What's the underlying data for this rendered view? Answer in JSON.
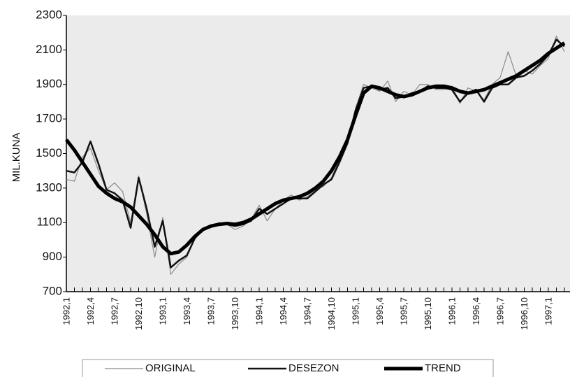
{
  "chart_data": {
    "type": "line",
    "y_label": "MIL.KUNA",
    "categories": [
      "1992,1",
      null,
      null,
      "1992,4",
      null,
      null,
      "1992,7",
      null,
      null,
      "1992,10",
      null,
      null,
      "1993,1",
      null,
      null,
      "1993,4",
      null,
      null,
      "1993,7",
      null,
      null,
      "1993,10",
      null,
      null,
      "1994,1",
      null,
      null,
      "1994,4",
      null,
      null,
      "1994,7",
      null,
      null,
      "1994,10",
      null,
      null,
      "1995,1",
      null,
      null,
      "1995,4",
      null,
      null,
      "1995,7",
      null,
      null,
      "1995,10",
      null,
      null,
      "1996,1",
      null,
      null,
      "1996,4",
      null,
      null,
      "1996,7",
      null,
      null,
      "1996,10",
      null,
      null,
      "1997,1",
      null,
      null
    ],
    "series": [
      {
        "name": "ORIGINAL",
        "color": "#8a8a8a",
        "width": 1.2,
        "values": [
          1350,
          1340,
          1480,
          1530,
          1400,
          1290,
          1330,
          1280,
          1100,
          1370,
          1150,
          900,
          1130,
          800,
          860,
          900,
          1010,
          1070,
          1070,
          1100,
          1090,
          1060,
          1080,
          1120,
          1200,
          1110,
          1180,
          1230,
          1260,
          1230,
          1250,
          1290,
          1310,
          1360,
          1470,
          1580,
          1760,
          1900,
          1880,
          1860,
          1920,
          1800,
          1860,
          1840,
          1900,
          1900,
          1870,
          1870,
          1890,
          1790,
          1880,
          1860,
          1810,
          1900,
          1940,
          2090,
          1950,
          1980,
          1960,
          2010,
          2050,
          2180,
          2090
        ]
      },
      {
        "name": "DESEZON",
        "color": "#111111",
        "width": 2.5,
        "values": [
          1400,
          1390,
          1450,
          1570,
          1440,
          1290,
          1270,
          1230,
          1070,
          1360,
          1180,
          960,
          1110,
          840,
          880,
          910,
          1010,
          1060,
          1080,
          1090,
          1090,
          1080,
          1090,
          1110,
          1180,
          1150,
          1180,
          1210,
          1240,
          1240,
          1240,
          1280,
          1320,
          1350,
          1450,
          1560,
          1750,
          1880,
          1890,
          1870,
          1880,
          1820,
          1830,
          1850,
          1860,
          1890,
          1880,
          1880,
          1870,
          1800,
          1850,
          1870,
          1800,
          1880,
          1900,
          1900,
          1940,
          1950,
          1980,
          2020,
          2070,
          2160,
          2120
        ]
      },
      {
        "name": "TREND",
        "color": "#000000",
        "width": 5,
        "values": [
          1580,
          1520,
          1450,
          1380,
          1310,
          1270,
          1240,
          1220,
          1190,
          1140,
          1090,
          1030,
          960,
          920,
          930,
          970,
          1020,
          1060,
          1080,
          1090,
          1095,
          1090,
          1100,
          1120,
          1150,
          1180,
          1210,
          1230,
          1240,
          1250,
          1270,
          1300,
          1340,
          1400,
          1480,
          1580,
          1720,
          1850,
          1890,
          1880,
          1860,
          1840,
          1830,
          1840,
          1860,
          1880,
          1890,
          1890,
          1880,
          1860,
          1850,
          1860,
          1870,
          1890,
          1910,
          1930,
          1950,
          1980,
          2010,
          2040,
          2080,
          2110,
          2140
        ]
      }
    ],
    "ylim": [
      700,
      2300
    ],
    "yticks": [
      700,
      900,
      1100,
      1300,
      1500,
      1700,
      1900,
      2100,
      2300
    ]
  }
}
